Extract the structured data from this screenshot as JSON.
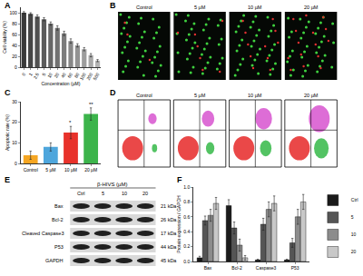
{
  "chart_data": [
    {
      "label": "A",
      "type": "bar",
      "x_label": "Concentration (µM)",
      "y_label": "Cell viability (%)",
      "categories": [
        "0",
        "1",
        "2.5",
        "5",
        "10",
        "20",
        "40",
        "60",
        "80",
        "100",
        "200",
        "500"
      ],
      "values": [
        100,
        98,
        93,
        88,
        80,
        72,
        62,
        48,
        40,
        33,
        22,
        12
      ],
      "errors": [
        2,
        2,
        3,
        3,
        3,
        4,
        4,
        4,
        3,
        3,
        3,
        2
      ],
      "colors": [
        "#3a3a3a",
        "#454545",
        "#505050",
        "#5b5b5b",
        "#666666",
        "#717171",
        "#7c7c7c",
        "#878787",
        "#929292",
        "#9d9d9d",
        "#a8a8a8",
        "#b3b3b3"
      ],
      "ylim": [
        0,
        110
      ],
      "yticks": [
        0,
        20,
        40,
        60,
        80,
        100
      ],
      "grid": false
    },
    {
      "label": "C",
      "type": "bar",
      "y_label": "Apoptotic rate (%)",
      "categories": [
        "Control",
        "5 µM",
        "10 µM",
        "20 µM"
      ],
      "values": [
        4,
        8,
        15,
        24
      ],
      "errors": [
        2,
        2,
        3,
        3
      ],
      "colors": [
        "#f5a623",
        "#4ea6dc",
        "#e8322b",
        "#3cb44b"
      ],
      "annotations": [
        {
          "category": "10 µM",
          "text": "*"
        },
        {
          "category": "20 µM",
          "text": "**"
        }
      ],
      "ylim": [
        0,
        30
      ],
      "yticks": [
        0,
        10,
        20,
        30
      ],
      "grid": false
    },
    {
      "label": "F",
      "type": "bar",
      "y_label": "Protein expression / GAPDH",
      "categories": [
        "Bax",
        "Bcl-2",
        "Caspase3",
        "P53"
      ],
      "series": [
        {
          "name": "Ctrl",
          "color": "#1a1a1a",
          "values": [
            0.05,
            0.75,
            0.02,
            0.02
          ],
          "errors": [
            0.02,
            0.08,
            0.01,
            0.01
          ]
        },
        {
          "name": "5",
          "color": "#555555",
          "values": [
            0.55,
            0.45,
            0.5,
            0.25
          ],
          "errors": [
            0.06,
            0.08,
            0.08,
            0.06
          ]
        },
        {
          "name": "10",
          "color": "#8c8c8c",
          "values": [
            0.62,
            0.22,
            0.7,
            0.6
          ],
          "errors": [
            0.08,
            0.08,
            0.1,
            0.1
          ]
        },
        {
          "name": "20",
          "color": "#c8c8c8",
          "values": [
            0.78,
            0.05,
            0.78,
            0.8
          ],
          "errors": [
            0.08,
            0.03,
            0.1,
            0.1
          ]
        }
      ],
      "ylim": [
        0,
        1
      ],
      "yticks": [
        {
          "value": 0,
          "label": "0.0"
        },
        {
          "value": 0.2,
          "label": "0.2"
        },
        {
          "value": 0.4,
          "label": "0.4"
        },
        {
          "value": 0.6,
          "label": "0.6"
        },
        {
          "value": 0.8,
          "label": "0.8"
        },
        {
          "value": 1,
          "label": "1.0"
        }
      ],
      "grid": false
    }
  ],
  "images": {
    "label": "B",
    "conditions": [
      "Control",
      "5 µM",
      "10 µM",
      "20 µM"
    ]
  },
  "flow": {
    "label": "D",
    "conditions": [
      "Control",
      "5 µM",
      "10 µM",
      "20 µM"
    ]
  },
  "blot": {
    "label": "E",
    "header": "β-HIVS (µM)",
    "lanes": [
      "Ctrl",
      "5",
      "10",
      "20"
    ],
    "proteins": [
      {
        "name": "Bax",
        "size": "21 kDa"
      },
      {
        "name": "Bcl-2",
        "size": "26 kDa"
      },
      {
        "name": "Cleaved Caspase3",
        "size": "17 kDa"
      },
      {
        "name": "P53",
        "size": "44 kDa"
      },
      {
        "name": "GAPDH",
        "size": "45 kDa"
      }
    ]
  }
}
